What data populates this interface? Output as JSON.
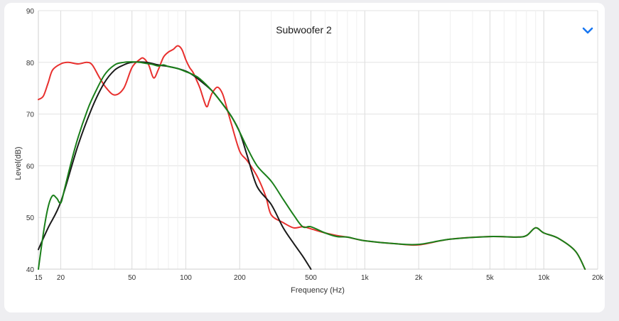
{
  "chart_data": {
    "type": "line",
    "title": "Subwoofer 2",
    "xlabel": "Frequency (Hz)",
    "ylabel": "Level(dB)",
    "x_scale": "log",
    "xlim": [
      15,
      20000
    ],
    "ylim": [
      40,
      90
    ],
    "grid": true,
    "x_ticks": [
      15,
      20,
      50,
      100,
      200,
      500,
      1000,
      2000,
      5000,
      10000,
      20000
    ],
    "x_tick_labels": [
      "15",
      "20",
      "50",
      "100",
      "200",
      "500",
      "1k",
      "2k",
      "5k",
      "10k",
      "20k"
    ],
    "y_ticks": [
      40,
      50,
      60,
      70,
      80,
      90
    ],
    "series": [
      {
        "color": "#e8302e",
        "x": [
          15,
          16,
          17,
          18,
          20,
          22,
          25,
          28,
          30,
          33,
          36,
          40,
          45,
          50,
          55,
          58,
          62,
          66,
          70,
          75,
          80,
          85,
          90,
          95,
          100,
          105,
          110,
          115,
          120,
          130,
          135,
          140,
          150,
          160,
          170,
          180,
          200,
          220,
          250,
          280,
          300,
          350,
          400,
          450,
          500,
          600,
          700,
          800,
          1000,
          1500,
          2000,
          3000,
          5000,
          7000,
          8000,
          9000,
          10000,
          12000,
          15000,
          17000
        ],
        "y": [
          72.8,
          73.5,
          76,
          78.5,
          79.7,
          80,
          79.7,
          80,
          79.5,
          77,
          75,
          73.7,
          75,
          79,
          80.5,
          80.8,
          79.5,
          77,
          78.5,
          81,
          82,
          82.5,
          83.2,
          82.5,
          80.5,
          79,
          78,
          76.5,
          75,
          71.5,
          72.5,
          74,
          75.2,
          74,
          71,
          68,
          62.8,
          61,
          58,
          54,
          50.5,
          49,
          48,
          48.2,
          47.8,
          47,
          46.5,
          46.2,
          45.5,
          44.9,
          44.7,
          45.8,
          46.3,
          46.2,
          46.5,
          48,
          47,
          46,
          43.5,
          40
        ]
      },
      {
        "color": "#1a1a1a",
        "x": [
          15,
          17,
          20,
          25,
          30,
          35,
          40,
          45,
          50,
          60,
          70,
          80,
          90,
          100,
          110,
          120,
          140,
          160,
          180,
          200,
          220,
          250,
          300,
          350,
          400,
          450,
          500
        ],
        "y": [
          43.8,
          48,
          53,
          64,
          71.3,
          76,
          78.5,
          79.5,
          80,
          80,
          79.5,
          79.2,
          78.8,
          78.3,
          77.5,
          76.5,
          74.5,
          72,
          69.5,
          66.5,
          62,
          56,
          52.5,
          48,
          45,
          42.5,
          40
        ]
      },
      {
        "color": "#1a7f1a",
        "x": [
          15,
          16,
          17,
          18,
          19,
          20,
          21,
          23,
          25,
          28,
          30,
          35,
          40,
          45,
          50,
          55,
          60,
          65,
          70,
          75,
          80,
          90,
          100,
          110,
          120,
          140,
          160,
          180,
          200,
          220,
          250,
          300,
          350,
          400,
          450,
          500,
          600,
          700,
          800,
          1000,
          1500,
          2000,
          3000,
          5000,
          7000,
          8000,
          9000,
          10000,
          12000,
          15000,
          17000
        ],
        "y": [
          40,
          47,
          52,
          54.2,
          53.7,
          52.8,
          55.5,
          61,
          65.5,
          70.5,
          73,
          77.5,
          79.5,
          80,
          80.1,
          80,
          79.8,
          79.6,
          79.3,
          79.5,
          79.2,
          78.8,
          78.2,
          77.6,
          76.8,
          74.5,
          72,
          69.5,
          66.5,
          63.5,
          60,
          57,
          53.5,
          50.5,
          48.2,
          48.2,
          47,
          46.3,
          46.2,
          45.5,
          44.9,
          44.8,
          45.8,
          46.3,
          46.2,
          46.5,
          48,
          47,
          46,
          43.5,
          40
        ]
      }
    ]
  }
}
